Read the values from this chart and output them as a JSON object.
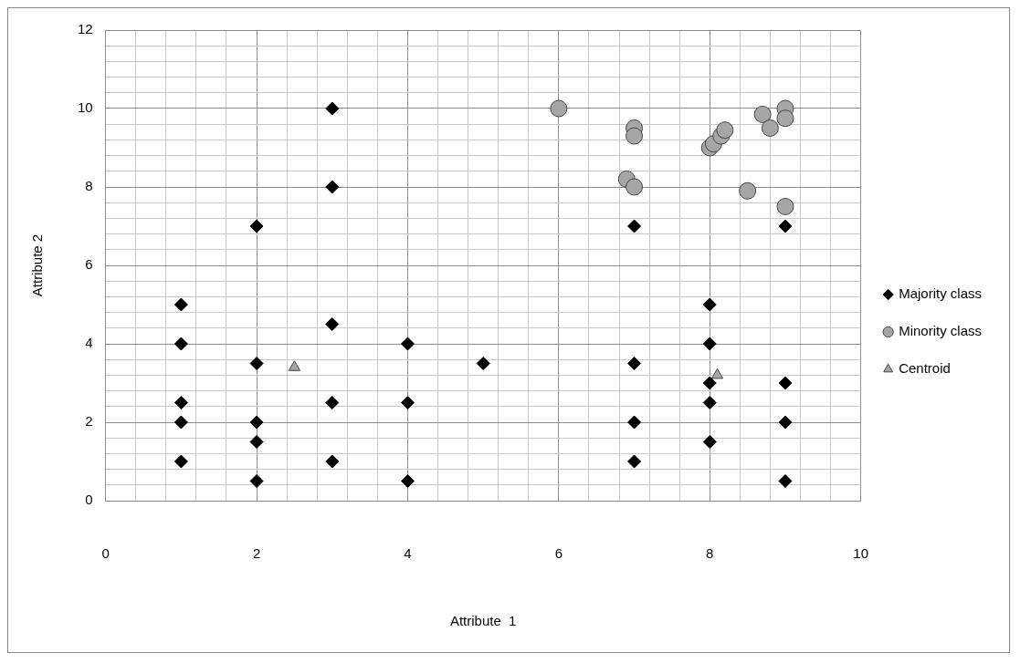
{
  "chart_data": {
    "type": "scatter",
    "xlabel": "Attribute  1",
    "ylabel": "Attribute 2",
    "xlim": [
      0,
      10
    ],
    "ylim": [
      0,
      12
    ],
    "xticks": [
      0,
      {
        "value": 0.4,
        "label": null
      },
      {
        "value": 0.8,
        "label": null
      },
      {
        "value": 1.2,
        "label": null
      },
      {
        "value": 1.6,
        "label": null
      },
      2,
      {
        "value": 2.4,
        "label": null
      },
      {
        "value": 2.8,
        "label": null
      },
      {
        "value": 3.2,
        "label": null
      },
      {
        "value": 3.6,
        "label": null
      },
      4,
      {
        "value": 4.4,
        "label": null
      },
      {
        "value": 4.8,
        "label": null
      },
      {
        "value": 5.2,
        "label": null
      },
      {
        "value": 5.6,
        "label": null
      },
      6,
      {
        "value": 6.4,
        "label": null
      },
      {
        "value": 6.8,
        "label": null
      },
      {
        "value": 7.2,
        "label": null
      },
      {
        "value": 7.6,
        "label": null
      },
      8,
      {
        "value": 8.4,
        "label": null
      },
      {
        "value": 8.8,
        "label": null
      },
      {
        "value": 9.2,
        "label": null
      },
      {
        "value": 9.6,
        "label": null
      },
      10
    ],
    "yticks": [
      0,
      {
        "value": 0.4,
        "label": null
      },
      {
        "value": 0.8,
        "label": null
      },
      {
        "value": 1.2,
        "label": null
      },
      {
        "value": 1.6,
        "label": null
      },
      2,
      {
        "value": 2.4,
        "label": null
      },
      {
        "value": 2.8,
        "label": null
      },
      {
        "value": 3.2,
        "label": null
      },
      {
        "value": 3.6,
        "label": null
      },
      4,
      {
        "value": 4.4,
        "label": null
      },
      {
        "value": 4.8,
        "label": null
      },
      {
        "value": 5.2,
        "label": null
      },
      {
        "value": 5.6,
        "label": null
      },
      6,
      {
        "value": 6.4,
        "label": null
      },
      {
        "value": 6.8,
        "label": null
      },
      {
        "value": 7.2,
        "label": null
      },
      {
        "value": 7.6,
        "label": null
      },
      8,
      {
        "value": 8.4,
        "label": null
      },
      {
        "value": 8.8,
        "label": null
      },
      {
        "value": 9.2,
        "label": null
      },
      {
        "value": 9.6,
        "label": null
      },
      10,
      {
        "value": 10.4,
        "label": null
      },
      {
        "value": 10.8,
        "label": null
      },
      {
        "value": 11.2,
        "label": null
      },
      {
        "value": 11.6,
        "label": null
      },
      12
    ],
    "grid": true,
    "legend": "right",
    "series": [
      {
        "name": "Majority class",
        "color": "#000000",
        "marker": "diamond",
        "x": [
          1,
          1,
          1,
          1,
          1,
          2,
          2,
          2,
          2,
          2,
          3,
          3,
          3,
          3,
          3,
          4,
          4,
          4,
          5,
          7,
          7,
          7,
          7,
          8,
          8,
          8,
          8,
          8,
          9,
          9,
          9,
          9
        ],
        "values": [
          5,
          4,
          2.5,
          2,
          1,
          7,
          3.5,
          2,
          1.5,
          0.5,
          10,
          8,
          4.5,
          2.5,
          1,
          4,
          2.5,
          0.5,
          3.5,
          7,
          3.5,
          2,
          1,
          5,
          4,
          3,
          2.5,
          1.5,
          7,
          3,
          2,
          0.5
        ]
      },
      {
        "name": "Minority class",
        "color": "#a6a6a6",
        "marker": "circle",
        "x": [
          6,
          7,
          7,
          6.9,
          7,
          8,
          8.05,
          8.15,
          8.2,
          8.7,
          9,
          8.8,
          9,
          8.5,
          9
        ],
        "values": [
          10,
          9.5,
          9.3,
          8.2,
          8,
          9,
          9.1,
          9.3,
          9.45,
          9.85,
          10,
          9.5,
          9.75,
          7.9,
          7.5
        ]
      },
      {
        "name": "Centroid",
        "color": "#a6a6a6",
        "marker": "triangle",
        "x": [
          2.5,
          8.1
        ],
        "values": [
          3.4,
          3.2
        ]
      }
    ]
  }
}
